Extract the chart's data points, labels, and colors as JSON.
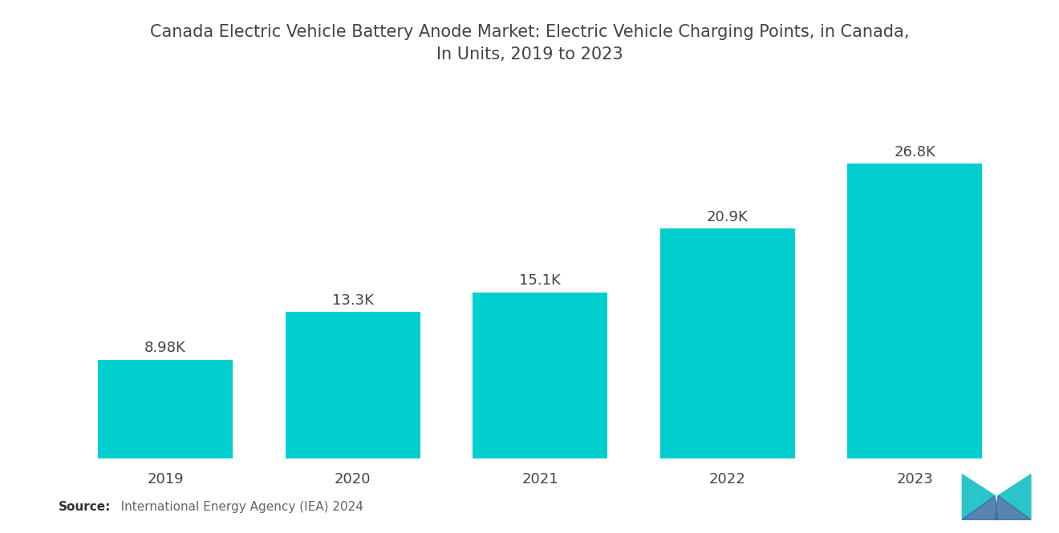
{
  "title": "Canada Electric Vehicle Battery Anode Market: Electric Vehicle Charging Points, in Canada,\nIn Units, 2019 to 2023",
  "categories": [
    "2019",
    "2020",
    "2021",
    "2022",
    "2023"
  ],
  "values": [
    8980,
    13300,
    15100,
    20900,
    26800
  ],
  "labels": [
    "8.98K",
    "13.3K",
    "15.1K",
    "20.9K",
    "26.8K"
  ],
  "bar_color": "#00CFCF",
  "background_color": "#ffffff",
  "title_fontsize": 15,
  "label_fontsize": 13,
  "tick_fontsize": 13,
  "source_bold": "Source:",
  "source_normal": "   International Energy Agency (IEA) 2024",
  "ylim": [
    0,
    32000
  ]
}
